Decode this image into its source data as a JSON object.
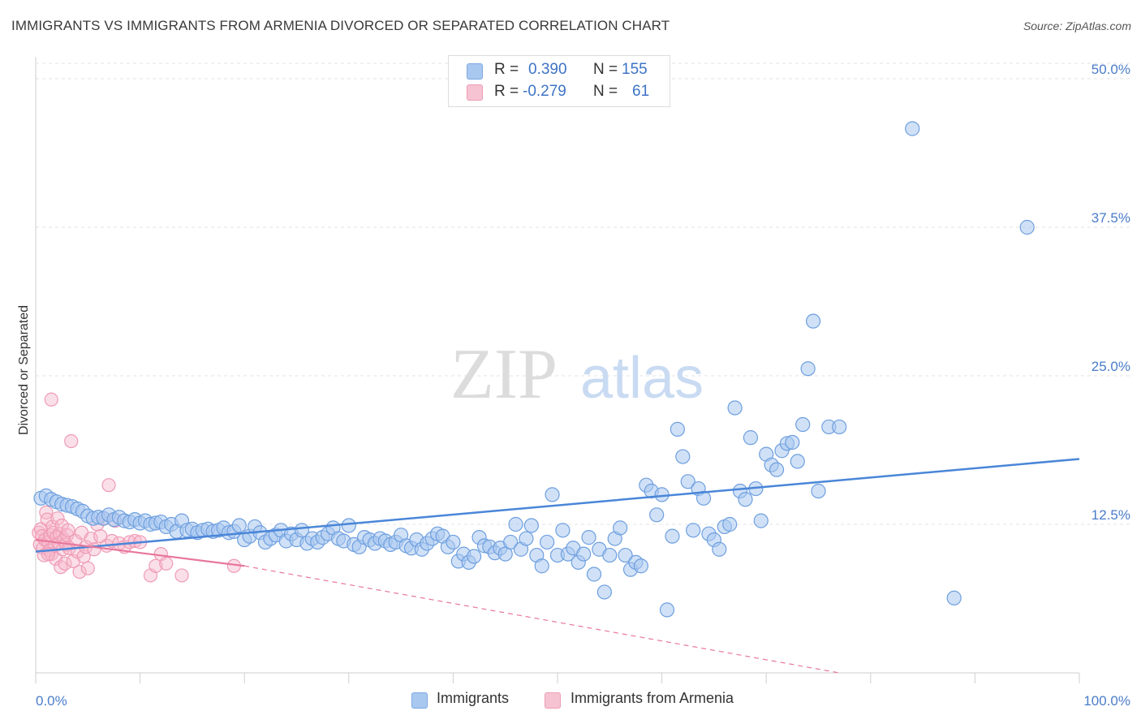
{
  "header": {
    "title": "IMMIGRANTS VS IMMIGRANTS FROM ARMENIA DIVORCED OR SEPARATED CORRELATION CHART",
    "source": "Source: ZipAtlas.com"
  },
  "watermark": {
    "part1": "ZIP",
    "part2": "atlas"
  },
  "legend_top": {
    "rows": [
      {
        "r_label": "R =",
        "r_value": "0.390",
        "n_label": "N =",
        "n_value": "155",
        "color": "#a9c8f0"
      },
      {
        "r_label": "R =",
        "r_value": "-0.279",
        "n_label": "N =",
        "n_value": "61",
        "color": "#f6b8cb"
      }
    ]
  },
  "legend_bottom": {
    "items": [
      {
        "label": "Immigrants",
        "color": "#a9c8f0"
      },
      {
        "label": "Immigrants from Armenia",
        "color": "#f6b8cb"
      }
    ]
  },
  "chart_data": {
    "type": "scatter",
    "ylabel": "Divorced or Separated",
    "x_tick_labels": [
      "0.0%",
      "100.0%"
    ],
    "y_tick_labels": [
      "12.5%",
      "25.0%",
      "37.5%",
      "50.0%"
    ],
    "xlim": [
      0,
      100
    ],
    "ylim": [
      0,
      50
    ],
    "grid": "horizontal dashed",
    "colors": {
      "immigrants": "#4a86d8",
      "armenia": "#e8779c"
    },
    "series": [
      {
        "name": "Immigrants",
        "trend": {
          "x": [
            0,
            100
          ],
          "y": [
            10.2,
            18.0
          ]
        },
        "points": [
          [
            0.5,
            14.7
          ],
          [
            1,
            14.9
          ],
          [
            1.5,
            14.6
          ],
          [
            2,
            14.4
          ],
          [
            2.5,
            14.2
          ],
          [
            3,
            14.1
          ],
          [
            3.5,
            14.0
          ],
          [
            4,
            13.8
          ],
          [
            4.5,
            13.6
          ],
          [
            5,
            13.2
          ],
          [
            5.5,
            13.0
          ],
          [
            6,
            13.1
          ],
          [
            6.5,
            13.0
          ],
          [
            7,
            13.3
          ],
          [
            7.5,
            12.9
          ],
          [
            8,
            13.1
          ],
          [
            8.5,
            12.8
          ],
          [
            9,
            12.7
          ],
          [
            9.5,
            12.9
          ],
          [
            10,
            12.6
          ],
          [
            10.5,
            12.8
          ],
          [
            11,
            12.5
          ],
          [
            11.5,
            12.6
          ],
          [
            12,
            12.7
          ],
          [
            12.5,
            12.3
          ],
          [
            13,
            12.5
          ],
          [
            13.5,
            11.9
          ],
          [
            14,
            12.8
          ],
          [
            14.5,
            12.0
          ],
          [
            15,
            12.1
          ],
          [
            15.5,
            11.8
          ],
          [
            16,
            12.0
          ],
          [
            16.5,
            12.1
          ],
          [
            17,
            11.9
          ],
          [
            17.5,
            12.0
          ],
          [
            18,
            12.2
          ],
          [
            18.5,
            11.8
          ],
          [
            19,
            11.9
          ],
          [
            19.5,
            12.4
          ],
          [
            20,
            11.2
          ],
          [
            20.5,
            11.5
          ],
          [
            21,
            12.3
          ],
          [
            21.5,
            11.8
          ],
          [
            22,
            11.0
          ],
          [
            22.5,
            11.3
          ],
          [
            23,
            11.6
          ],
          [
            23.5,
            12.0
          ],
          [
            24,
            11.1
          ],
          [
            24.5,
            11.7
          ],
          [
            25,
            11.2
          ],
          [
            25.5,
            12.0
          ],
          [
            26,
            10.9
          ],
          [
            26.5,
            11.3
          ],
          [
            27,
            11.0
          ],
          [
            27.5,
            11.4
          ],
          [
            28,
            11.7
          ],
          [
            28.5,
            12.2
          ],
          [
            29,
            11.3
          ],
          [
            29.5,
            11.1
          ],
          [
            30,
            12.4
          ],
          [
            30.5,
            10.8
          ],
          [
            31,
            10.6
          ],
          [
            31.5,
            11.4
          ],
          [
            32,
            11.2
          ],
          [
            32.5,
            10.9
          ],
          [
            33,
            11.3
          ],
          [
            33.5,
            11.1
          ],
          [
            34,
            10.8
          ],
          [
            34.5,
            11.0
          ],
          [
            35,
            11.6
          ],
          [
            35.5,
            10.7
          ],
          [
            36,
            10.5
          ],
          [
            36.5,
            11.2
          ],
          [
            37,
            10.4
          ],
          [
            37.5,
            10.9
          ],
          [
            38,
            11.3
          ],
          [
            38.5,
            11.7
          ],
          [
            39,
            11.5
          ],
          [
            39.5,
            10.6
          ],
          [
            40,
            11.0
          ],
          [
            40.5,
            9.4
          ],
          [
            41,
            10.0
          ],
          [
            41.5,
            9.3
          ],
          [
            42,
            9.8
          ],
          [
            42.5,
            11.4
          ],
          [
            43,
            10.7
          ],
          [
            43.5,
            10.6
          ],
          [
            44,
            10.1
          ],
          [
            44.5,
            10.5
          ],
          [
            45,
            10.0
          ],
          [
            45.5,
            11.0
          ],
          [
            46,
            12.5
          ],
          [
            46.5,
            10.4
          ],
          [
            47,
            11.3
          ],
          [
            47.5,
            12.4
          ],
          [
            48,
            9.9
          ],
          [
            48.5,
            9.0
          ],
          [
            49,
            11.0
          ],
          [
            49.5,
            15.0
          ],
          [
            50,
            9.9
          ],
          [
            50.5,
            12.0
          ],
          [
            51,
            10.0
          ],
          [
            51.5,
            10.5
          ],
          [
            52,
            9.3
          ],
          [
            52.5,
            10.0
          ],
          [
            53,
            11.4
          ],
          [
            53.5,
            8.3
          ],
          [
            54,
            10.4
          ],
          [
            54.5,
            6.8
          ],
          [
            55,
            9.9
          ],
          [
            55.5,
            11.3
          ],
          [
            56,
            12.2
          ],
          [
            56.5,
            9.9
          ],
          [
            57,
            8.7
          ],
          [
            57.5,
            9.3
          ],
          [
            58,
            9.0
          ],
          [
            58.5,
            15.8
          ],
          [
            59,
            15.3
          ],
          [
            59.5,
            13.3
          ],
          [
            60,
            15.0
          ],
          [
            60.5,
            5.3
          ],
          [
            61,
            11.5
          ],
          [
            61.5,
            20.5
          ],
          [
            62,
            18.2
          ],
          [
            62.5,
            16.1
          ],
          [
            63,
            12.0
          ],
          [
            63.5,
            15.5
          ],
          [
            64,
            14.7
          ],
          [
            64.5,
            11.7
          ],
          [
            65,
            11.2
          ],
          [
            65.5,
            10.4
          ],
          [
            66,
            12.3
          ],
          [
            66.5,
            12.5
          ],
          [
            67,
            22.3
          ],
          [
            67.5,
            15.3
          ],
          [
            68,
            14.6
          ],
          [
            68.5,
            19.8
          ],
          [
            69,
            15.5
          ],
          [
            69.5,
            12.8
          ],
          [
            70,
            18.4
          ],
          [
            70.5,
            17.5
          ],
          [
            71,
            17.1
          ],
          [
            71.5,
            18.7
          ],
          [
            72,
            19.3
          ],
          [
            72.5,
            19.4
          ],
          [
            73,
            17.8
          ],
          [
            73.5,
            20.9
          ],
          [
            74,
            25.6
          ],
          [
            74.5,
            29.6
          ],
          [
            75,
            15.3
          ],
          [
            76,
            20.7
          ],
          [
            77,
            20.7
          ],
          [
            84,
            45.8
          ],
          [
            88,
            6.3
          ],
          [
            95,
            37.5
          ]
        ]
      },
      {
        "name": "Immigrants from Armenia",
        "trend": {
          "x": [
            0,
            20
          ],
          "y": [
            11.2,
            9.0
          ]
        },
        "trend_extended": {
          "x": [
            20,
            77
          ],
          "y": [
            9.0,
            0.0
          ]
        },
        "points": [
          [
            0.3,
            11.8
          ],
          [
            0.4,
            10.8
          ],
          [
            0.5,
            12.1
          ],
          [
            0.6,
            11.5
          ],
          [
            0.7,
            10.5
          ],
          [
            0.8,
            9.9
          ],
          [
            0.9,
            11.2
          ],
          [
            1.0,
            13.5
          ],
          [
            1.1,
            12.9
          ],
          [
            1.2,
            11.0
          ],
          [
            1.3,
            10.3
          ],
          [
            1.4,
            11.6
          ],
          [
            1.5,
            10.0
          ],
          [
            1.6,
            12.3
          ],
          [
            1.7,
            11.8
          ],
          [
            1.8,
            10.7
          ],
          [
            1.9,
            9.6
          ],
          [
            2.0,
            11.4
          ],
          [
            2.1,
            13.0
          ],
          [
            2.2,
            10.9
          ],
          [
            2.3,
            11.7
          ],
          [
            2.4,
            8.9
          ],
          [
            2.5,
            12.4
          ],
          [
            2.6,
            10.4
          ],
          [
            2.7,
            11.2
          ],
          [
            2.8,
            9.2
          ],
          [
            2.9,
            10.8
          ],
          [
            3.0,
            11.6
          ],
          [
            3.1,
            12.0
          ],
          [
            3.2,
            10.5
          ],
          [
            3.4,
            19.5
          ],
          [
            3.6,
            9.4
          ],
          [
            3.8,
            11.1
          ],
          [
            4.0,
            10.2
          ],
          [
            4.2,
            8.5
          ],
          [
            4.4,
            11.8
          ],
          [
            4.6,
            9.8
          ],
          [
            4.8,
            10.6
          ],
          [
            5.0,
            8.8
          ],
          [
            5.3,
            11.3
          ],
          [
            5.6,
            10.4
          ],
          [
            5.9,
            12.5
          ],
          [
            6.2,
            11.5
          ],
          [
            6.5,
            13.0
          ],
          [
            6.8,
            10.7
          ],
          [
            7.0,
            15.8
          ],
          [
            7.3,
            11.1
          ],
          [
            7.6,
            12.8
          ],
          [
            1.5,
            23.0
          ],
          [
            1.2,
            10.0
          ],
          [
            8.0,
            10.9
          ],
          [
            8.5,
            10.6
          ],
          [
            9.0,
            11.0
          ],
          [
            9.5,
            11.1
          ],
          [
            10.0,
            11.0
          ],
          [
            11.0,
            8.2
          ],
          [
            11.5,
            9.0
          ],
          [
            12.0,
            10.0
          ],
          [
            12.5,
            9.2
          ],
          [
            14.0,
            8.2
          ],
          [
            19.0,
            9.0
          ]
        ]
      }
    ]
  }
}
